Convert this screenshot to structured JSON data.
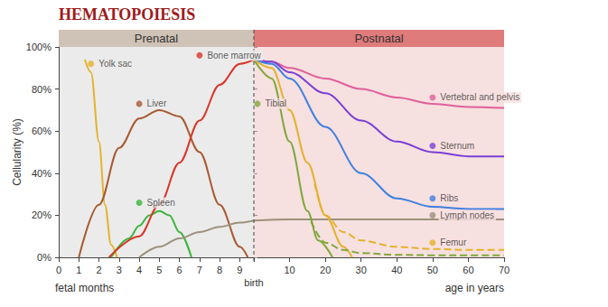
{
  "title": "HEMATOPOIESIS",
  "chart_data": [
    {
      "type": "line",
      "title": "Prenatal",
      "xlabel": "fetal months",
      "ylabel": "Cellularity (%)",
      "xlim": [
        0,
        9.7
      ],
      "xticks": [
        0,
        1,
        2,
        3,
        4,
        5,
        6,
        7,
        8,
        9,
        {
          "value": 9.7,
          "label": "birth"
        }
      ],
      "ylim": [
        0,
        100
      ],
      "yticks": [
        {
          "value": 0,
          "label": "0%"
        },
        {
          "value": 20,
          "label": "20%"
        },
        {
          "value": 40,
          "label": "40%"
        },
        {
          "value": 60,
          "label": "60%"
        },
        {
          "value": 80,
          "label": "80%"
        },
        {
          "value": 100,
          "label": "100%"
        }
      ],
      "grid": false,
      "series": [
        {
          "name": "Yolk sac",
          "color": "#e5b22b",
          "x": [
            1.3,
            1.6,
            2.0,
            2.3,
            2.6,
            2.9
          ],
          "values": [
            94,
            88,
            55,
            25,
            6,
            0
          ],
          "label_point": [
            1.6,
            92
          ]
        },
        {
          "name": "Liver",
          "color": "#a85a32",
          "x": [
            1,
            2,
            3,
            4,
            5,
            6,
            7,
            8,
            9,
            9.4
          ],
          "values": [
            0,
            25,
            52,
            66,
            70,
            67,
            50,
            25,
            5,
            0
          ],
          "label_point": [
            4,
            73
          ]
        },
        {
          "name": "Spleen",
          "color": "#3bb53b",
          "x": [
            2.6,
            3.5,
            4,
            4.5,
            5,
            5.5,
            6,
            6.6
          ],
          "values": [
            0,
            9,
            15,
            20,
            22,
            20,
            12,
            0
          ],
          "label_point": [
            4,
            26
          ]
        },
        {
          "name": "Bone marrow",
          "color": "#d9362b",
          "x": [
            2.5,
            4,
            5,
            6,
            7,
            8,
            9,
            9.7
          ],
          "values": [
            0,
            10,
            25,
            45,
            65,
            82,
            92,
            94
          ],
          "label_point": [
            7,
            96
          ]
        },
        {
          "name": "Lymph nodes",
          "color": "#9c917c",
          "x": [
            4,
            5,
            6,
            7,
            8,
            9,
            9.7
          ],
          "values": [
            0,
            5,
            9,
            12,
            14.5,
            16.5,
            17.5
          ]
        }
      ]
    },
    {
      "type": "line",
      "title": "Postnatal",
      "xlabel": "age in years",
      "xlim": [
        0,
        70
      ],
      "xticks": [
        10,
        20,
        30,
        40,
        50,
        60,
        70
      ],
      "ylim": [
        0,
        100
      ],
      "yticks": [
        0,
        20,
        40,
        60,
        80,
        100
      ],
      "tick_labels": "x",
      "grid": false,
      "series": [
        {
          "name": "Vertebral and pelvis",
          "color": "#e0609a",
          "x": [
            0,
            5,
            10,
            20,
            30,
            40,
            50,
            60,
            70
          ],
          "values": [
            94,
            93,
            90,
            85,
            80,
            76,
            73,
            71.5,
            71
          ],
          "label_point": [
            50,
            76
          ]
        },
        {
          "name": "Sternum",
          "color": "#7a3fd6",
          "x": [
            0,
            5,
            10,
            20,
            30,
            40,
            50,
            60,
            70
          ],
          "values": [
            94,
            93,
            88,
            78,
            65,
            55,
            50,
            48,
            48
          ],
          "label_point": [
            50,
            53
          ]
        },
        {
          "name": "Ribs",
          "color": "#3f7fe0",
          "x": [
            0,
            5,
            10,
            20,
            30,
            40,
            50,
            60,
            70
          ],
          "values": [
            94,
            92,
            85,
            62,
            40,
            28,
            24,
            23,
            23
          ],
          "label_point": [
            50,
            28
          ]
        },
        {
          "name": "Lymph nodes",
          "color": "#9c917c",
          "x": [
            0,
            10,
            20,
            40,
            70
          ],
          "values": [
            17.5,
            18,
            18,
            18,
            18
          ],
          "label_point": [
            50,
            20
          ]
        },
        {
          "name": "Femur",
          "color": "#e5b22b",
          "line_style": "solid",
          "x": [
            0,
            5,
            10,
            15,
            20,
            25,
            27.5
          ],
          "values": [
            94,
            90,
            70,
            45,
            20,
            5,
            0
          ]
        },
        {
          "name": "Femur",
          "color": "#e5b22b",
          "line_style": "dashed",
          "x": [
            17,
            20,
            25,
            30,
            40,
            50,
            60,
            70
          ],
          "values": [
            35,
            20,
            12,
            8,
            5,
            4,
            3.5,
            3.5
          ],
          "label_point": [
            50,
            7
          ]
        },
        {
          "name": "Tibial",
          "color": "#7fa83a",
          "line_style": "solid",
          "x": [
            0,
            5,
            10,
            15,
            18,
            22
          ],
          "values": [
            94,
            85,
            55,
            22,
            8,
            0
          ],
          "label_point": [
            1,
            73
          ]
        },
        {
          "name": "Tibial",
          "color": "#7fa83a",
          "line_style": "dashed",
          "x": [
            16,
            20,
            25,
            30,
            40,
            50,
            60,
            70
          ],
          "values": [
            17,
            7,
            3.5,
            2,
            1.2,
            1,
            1,
            1
          ]
        }
      ]
    }
  ]
}
